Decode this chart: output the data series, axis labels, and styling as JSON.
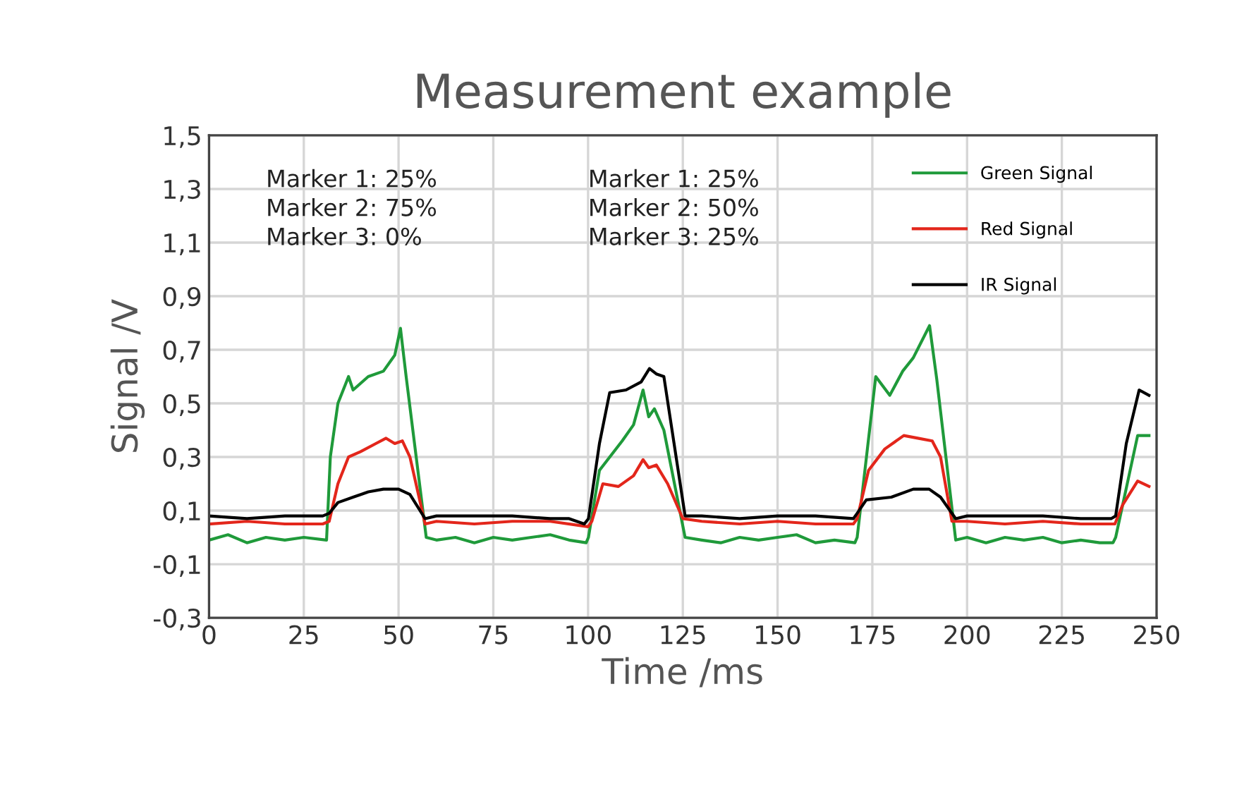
{
  "chart_data": {
    "type": "line",
    "title": "Measurement example",
    "xlabel": "Time /ms",
    "ylabel": "Signal /V",
    "annotations": [
      "Marker 1: 25%\nMarker 2: 75%\nMarker 3: 0%",
      "Marker 1: 25%\nMarker 2: 50%\nMarker 3: 25%"
    ],
    "series": [
      {
        "name": "Green Signal",
        "color": "#1f9a3a",
        "x": [
          0,
          5,
          10,
          15,
          20,
          25,
          31,
          32,
          34,
          36.8,
          38,
          42,
          46,
          49,
          50.5,
          52,
          57.3,
          60,
          65,
          70,
          75,
          80,
          85,
          90,
          95,
          99.5,
          100.1,
          103,
          109,
          112,
          114.5,
          116,
          117.5,
          120,
          125.6,
          130,
          135,
          140,
          145,
          150,
          155,
          160,
          165,
          170.4,
          171,
          175.9,
          179.6,
          183,
          185.8,
          190.1,
          192,
          197,
          200,
          205,
          210,
          215,
          220,
          225,
          230,
          235,
          238.5,
          239.2,
          245,
          248
        ],
        "values": [
          -0.01,
          0.01,
          -0.02,
          0.0,
          -0.01,
          0.0,
          -0.01,
          0.3,
          0.5,
          0.6,
          0.55,
          0.6,
          0.62,
          0.68,
          0.78,
          0.6,
          0.0,
          -0.01,
          0.0,
          -0.02,
          0.0,
          -0.01,
          0.0,
          0.01,
          -0.01,
          -0.02,
          0.0,
          0.25,
          0.36,
          0.42,
          0.55,
          0.45,
          0.48,
          0.4,
          0.0,
          -0.01,
          -0.02,
          0.0,
          -0.01,
          0.0,
          0.01,
          -0.02,
          -0.01,
          -0.02,
          0.0,
          0.6,
          0.53,
          0.62,
          0.67,
          0.79,
          0.59,
          -0.01,
          0.0,
          -0.02,
          0.0,
          -0.01,
          0.0,
          -0.02,
          -0.01,
          -0.02,
          -0.02,
          0.0,
          0.38,
          0.38
        ]
      },
      {
        "name": "Red Signal",
        "color": "#e3261b",
        "x": [
          0,
          10,
          20,
          30,
          31.7,
          34,
          36.8,
          40,
          44,
          46.7,
          49,
          51,
          53,
          57,
          60,
          70,
          80,
          90,
          100,
          101,
          103.9,
          108,
          112,
          114.5,
          116,
          118,
          121,
          125,
          130,
          140,
          150,
          160,
          170,
          171,
          174,
          178.3,
          183.3,
          187,
          190.8,
          193,
          196,
          200,
          210,
          220,
          230,
          239,
          241,
          245,
          248
        ],
        "values": [
          0.05,
          0.06,
          0.05,
          0.05,
          0.06,
          0.2,
          0.3,
          0.32,
          0.35,
          0.37,
          0.35,
          0.36,
          0.3,
          0.05,
          0.06,
          0.05,
          0.06,
          0.06,
          0.04,
          0.06,
          0.2,
          0.19,
          0.23,
          0.29,
          0.26,
          0.27,
          0.2,
          0.07,
          0.06,
          0.05,
          0.06,
          0.05,
          0.05,
          0.07,
          0.25,
          0.33,
          0.38,
          0.37,
          0.36,
          0.3,
          0.06,
          0.06,
          0.05,
          0.06,
          0.05,
          0.05,
          0.12,
          0.21,
          0.19
        ]
      },
      {
        "name": "IR Signal",
        "color": "#000000",
        "x": [
          0,
          10,
          20,
          30,
          31.7,
          34,
          38,
          42,
          46,
          50,
          53,
          57,
          60,
          70,
          80,
          90,
          95,
          99,
          100.1,
          103,
          105.7,
          110,
          114,
          116.2,
          118,
          120,
          125.6,
          130,
          140,
          150,
          160,
          170,
          171,
          173.4,
          180,
          185.8,
          190,
          193,
          197,
          200,
          210,
          220,
          230,
          238,
          239.2,
          242,
          245.4,
          248
        ],
        "values": [
          0.08,
          0.07,
          0.08,
          0.08,
          0.09,
          0.13,
          0.15,
          0.17,
          0.18,
          0.18,
          0.16,
          0.07,
          0.08,
          0.08,
          0.08,
          0.07,
          0.07,
          0.05,
          0.07,
          0.35,
          0.54,
          0.55,
          0.58,
          0.63,
          0.61,
          0.6,
          0.08,
          0.08,
          0.07,
          0.08,
          0.08,
          0.07,
          0.09,
          0.14,
          0.15,
          0.18,
          0.18,
          0.15,
          0.07,
          0.08,
          0.08,
          0.08,
          0.07,
          0.07,
          0.08,
          0.35,
          0.55,
          0.53
        ]
      }
    ],
    "xlim": [
      0,
      250
    ],
    "xticks": [
      0,
      25,
      50,
      75,
      100,
      125,
      150,
      175,
      200,
      225,
      250
    ],
    "ylim": [
      -0.3,
      1.5
    ],
    "yticks": [
      {
        "value": -0.3,
        "label": "-0,3"
      },
      {
        "value": -0.1,
        "label": "-0,1"
      },
      {
        "value": 0.1,
        "label": "0,1"
      },
      {
        "value": 0.3,
        "label": "0,3"
      },
      {
        "value": 0.5,
        "label": "0,5"
      },
      {
        "value": 0.7,
        "label": "0,7"
      },
      {
        "value": 0.9,
        "label": "0,9"
      },
      {
        "value": 1.1,
        "label": "1,1"
      },
      {
        "value": 1.3,
        "label": "1,3"
      },
      {
        "value": 1.5,
        "label": "1,5"
      }
    ],
    "grid": true,
    "legend": "top right",
    "line_style": "solid",
    "marker": "none"
  }
}
